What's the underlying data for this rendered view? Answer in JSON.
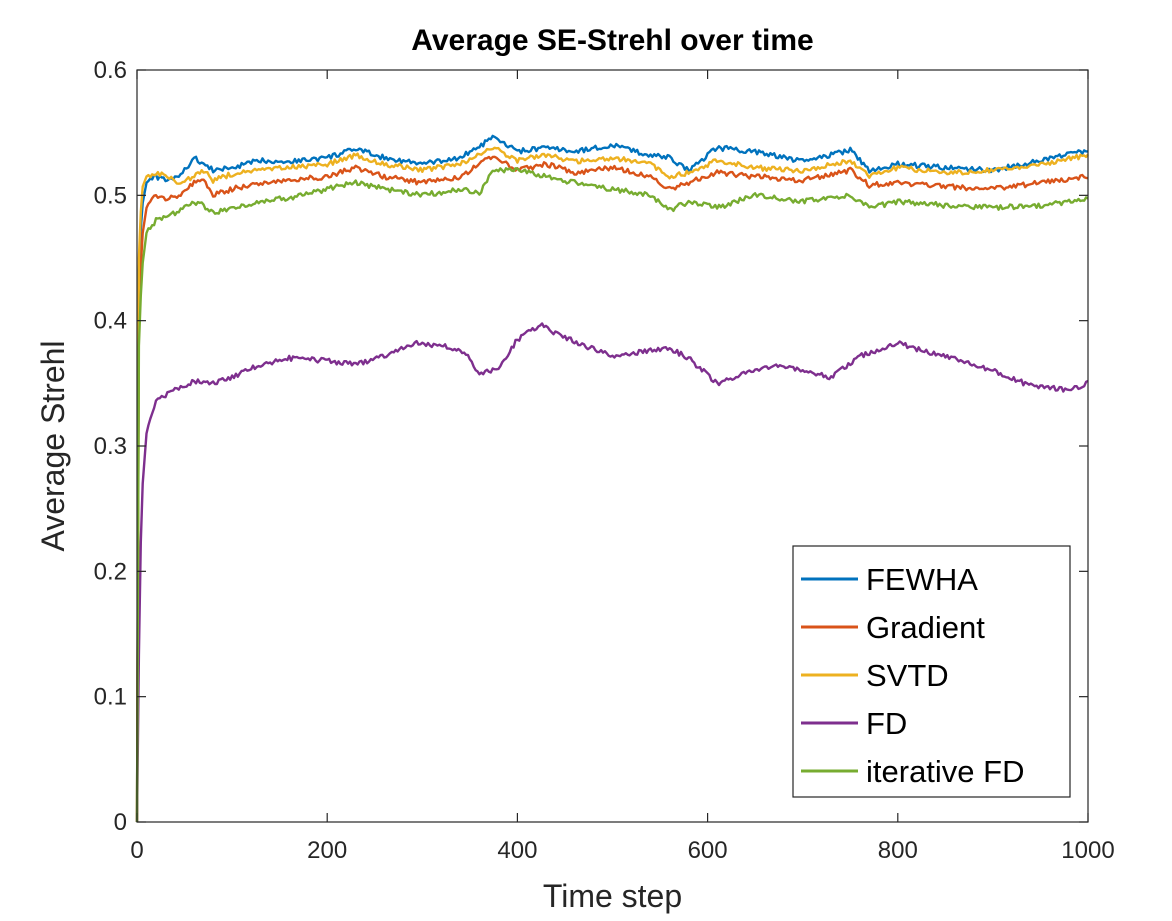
{
  "chart_data": {
    "type": "line",
    "title": "Average SE-Strehl over time",
    "xlabel": "Time step",
    "ylabel": "Average Strehl",
    "xlim": [
      0,
      1000
    ],
    "ylim": [
      0,
      0.6
    ],
    "xticks": [
      0,
      200,
      400,
      600,
      800,
      1000
    ],
    "xtick_labels": [
      "0",
      "200",
      "400",
      "600",
      "800",
      "1000"
    ],
    "yticks": [
      0,
      0.1,
      0.2,
      0.3,
      0.4,
      0.5,
      0.6
    ],
    "ytick_labels": [
      "0",
      "0.1",
      "0.2",
      "0.3",
      "0.4",
      "0.5",
      "0.6"
    ],
    "grid": false,
    "legend_position": "bottom-right",
    "series": [
      {
        "name": "FEWHA",
        "color": "#0072BD",
        "x": [
          0,
          2,
          5,
          10,
          20,
          30,
          45,
          60,
          70,
          80,
          100,
          130,
          160,
          200,
          230,
          260,
          300,
          340,
          375,
          400,
          430,
          460,
          500,
          540,
          560,
          580,
          610,
          650,
          700,
          750,
          770,
          800,
          850,
          900,
          950,
          1000
        ],
        "y": [
          0.0,
          0.44,
          0.49,
          0.51,
          0.515,
          0.512,
          0.515,
          0.53,
          0.525,
          0.52,
          0.522,
          0.528,
          0.527,
          0.53,
          0.537,
          0.53,
          0.525,
          0.53,
          0.546,
          0.535,
          0.538,
          0.535,
          0.54,
          0.532,
          0.53,
          0.52,
          0.538,
          0.535,
          0.527,
          0.536,
          0.52,
          0.525,
          0.522,
          0.52,
          0.528,
          0.536
        ]
      },
      {
        "name": "Gradient",
        "color": "#D95319",
        "x": [
          0,
          2,
          5,
          10,
          20,
          30,
          45,
          60,
          70,
          80,
          100,
          130,
          160,
          200,
          230,
          260,
          300,
          340,
          375,
          400,
          430,
          460,
          500,
          540,
          560,
          580,
          610,
          650,
          700,
          750,
          770,
          800,
          850,
          900,
          950,
          1000
        ],
        "y": [
          0.0,
          0.4,
          0.465,
          0.49,
          0.5,
          0.498,
          0.5,
          0.51,
          0.512,
          0.5,
          0.505,
          0.51,
          0.512,
          0.515,
          0.522,
          0.515,
          0.51,
          0.515,
          0.532,
          0.52,
          0.525,
          0.518,
          0.522,
          0.515,
          0.505,
          0.51,
          0.518,
          0.515,
          0.512,
          0.52,
          0.508,
          0.51,
          0.507,
          0.505,
          0.51,
          0.515
        ]
      },
      {
        "name": "SVTD",
        "color": "#EDB120",
        "x": [
          0,
          2,
          5,
          10,
          20,
          30,
          45,
          60,
          70,
          80,
          100,
          130,
          160,
          200,
          230,
          260,
          300,
          340,
          375,
          400,
          430,
          460,
          500,
          540,
          560,
          580,
          610,
          650,
          700,
          750,
          770,
          800,
          850,
          900,
          950,
          1000
        ],
        "y": [
          0.0,
          0.45,
          0.505,
          0.515,
          0.518,
          0.515,
          0.51,
          0.515,
          0.52,
          0.512,
          0.517,
          0.52,
          0.522,
          0.525,
          0.532,
          0.525,
          0.52,
          0.525,
          0.538,
          0.528,
          0.532,
          0.527,
          0.53,
          0.525,
          0.515,
          0.518,
          0.528,
          0.522,
          0.52,
          0.528,
          0.515,
          0.522,
          0.518,
          0.52,
          0.525,
          0.532
        ]
      },
      {
        "name": "FD",
        "color": "#7E2F8E",
        "x": [
          0,
          3,
          6,
          10,
          15,
          20,
          30,
          40,
          60,
          80,
          100,
          130,
          160,
          200,
          230,
          260,
          290,
          320,
          345,
          360,
          380,
          400,
          425,
          440,
          470,
          500,
          530,
          560,
          580,
          610,
          640,
          670,
          700,
          730,
          760,
          800,
          830,
          860,
          900,
          940,
          980,
          1000
        ],
        "y": [
          0.0,
          0.2,
          0.27,
          0.31,
          0.325,
          0.335,
          0.34,
          0.345,
          0.352,
          0.35,
          0.355,
          0.365,
          0.37,
          0.368,
          0.365,
          0.372,
          0.382,
          0.38,
          0.375,
          0.358,
          0.362,
          0.385,
          0.397,
          0.39,
          0.38,
          0.372,
          0.375,
          0.378,
          0.37,
          0.35,
          0.358,
          0.365,
          0.36,
          0.355,
          0.372,
          0.382,
          0.375,
          0.37,
          0.36,
          0.348,
          0.345,
          0.35
        ]
      },
      {
        "name": "iterative FD",
        "color": "#77AC30",
        "x": [
          0,
          2,
          5,
          10,
          20,
          30,
          45,
          60,
          70,
          80,
          100,
          130,
          160,
          200,
          230,
          260,
          300,
          340,
          360,
          375,
          400,
          430,
          460,
          500,
          540,
          560,
          580,
          610,
          650,
          700,
          750,
          770,
          800,
          850,
          900,
          950,
          1000
        ],
        "y": [
          0.0,
          0.38,
          0.44,
          0.47,
          0.48,
          0.482,
          0.488,
          0.495,
          0.492,
          0.486,
          0.49,
          0.495,
          0.498,
          0.505,
          0.51,
          0.505,
          0.5,
          0.505,
          0.502,
          0.52,
          0.52,
          0.515,
          0.51,
          0.505,
          0.5,
          0.488,
          0.495,
          0.49,
          0.5,
          0.495,
          0.5,
          0.49,
          0.495,
          0.492,
          0.49,
          0.492,
          0.497
        ]
      }
    ]
  }
}
